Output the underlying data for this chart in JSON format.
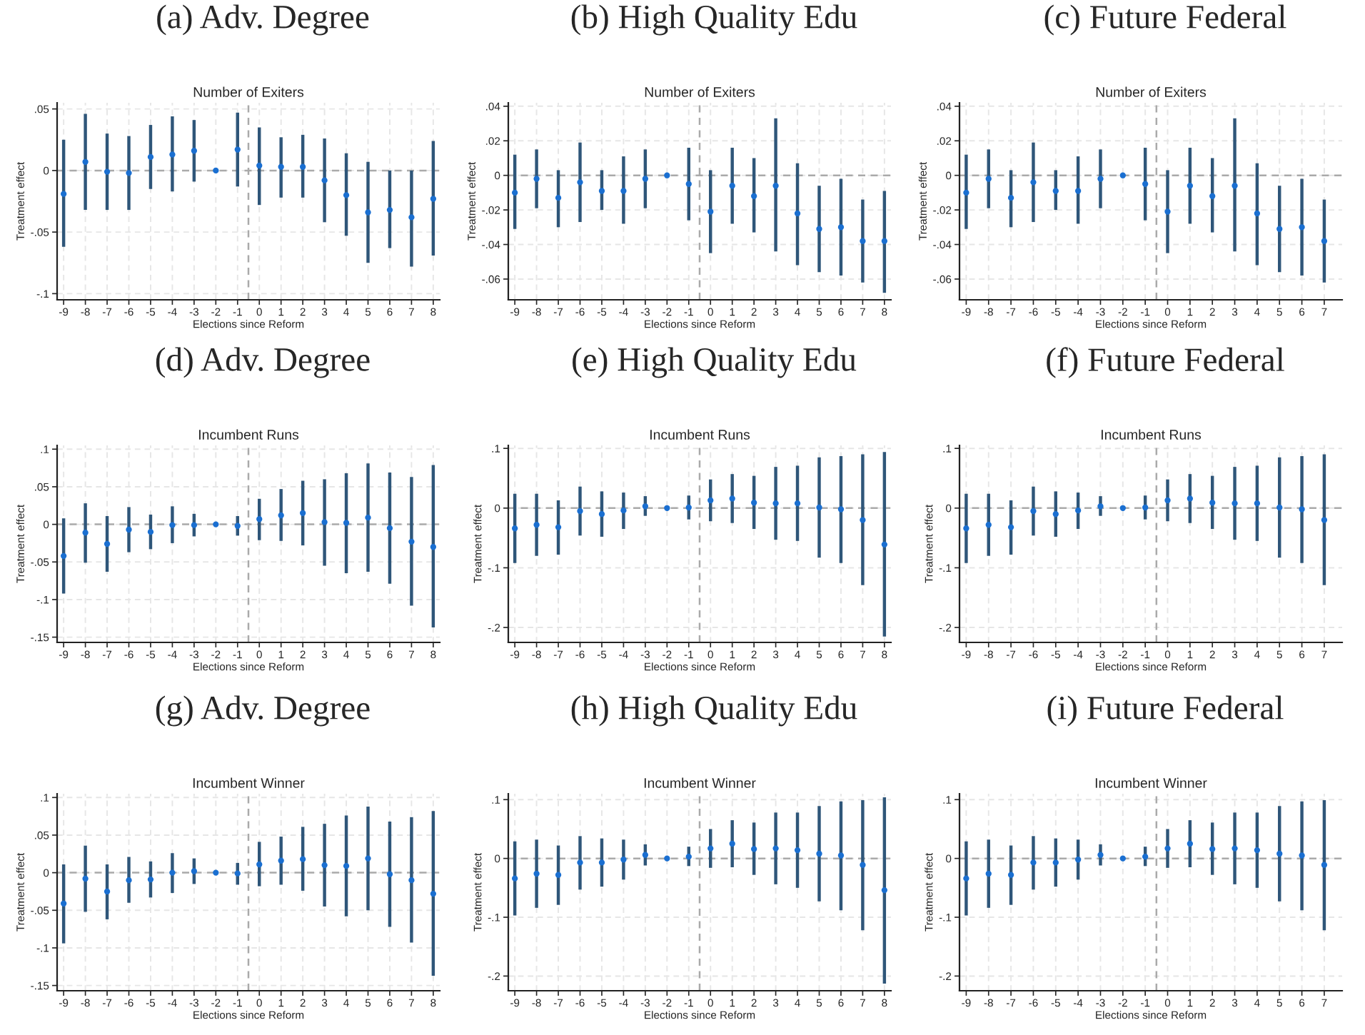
{
  "chart_data": [
    {
      "type": "scatter",
      "title": "(a) Adv. Degree",
      "subtitle": "Number of Exiters",
      "xlabel": "Elections since Reform",
      "ylabel": "Treatment effect",
      "marker": "circle",
      "grid": true,
      "x": [
        -9,
        -8,
        -7,
        -6,
        -5,
        -4,
        -3,
        -2,
        -1,
        0,
        1,
        2,
        3,
        4,
        5,
        6,
        7,
        8
      ],
      "series": [
        {
          "color": "#1a6fd1",
          "values": [
            -0.019,
            0.007,
            -0.001,
            -0.002,
            0.011,
            0.013,
            0.016,
            0,
            0.017,
            0.004,
            0.003,
            0.003,
            -0.008,
            -0.02,
            -0.034,
            -0.032,
            -0.038,
            -0.023
          ],
          "errors": [
            [
              -0.062,
              0.025
            ],
            [
              -0.032,
              0.046
            ],
            [
              -0.032,
              0.03
            ],
            [
              -0.032,
              0.028
            ],
            [
              -0.015,
              0.037
            ],
            [
              -0.017,
              0.044
            ],
            [
              -0.009,
              0.041
            ],
            null,
            [
              -0.013,
              0.047
            ],
            [
              -0.028,
              0.035
            ],
            [
              -0.022,
              0.027
            ],
            [
              -0.022,
              0.029
            ],
            [
              -0.042,
              0.026
            ],
            [
              -0.053,
              0.014
            ],
            [
              -0.075,
              0.007
            ],
            [
              -0.063,
              0
            ],
            [
              -0.078,
              0
            ],
            [
              -0.069,
              0.024
            ]
          ]
        }
      ],
      "xlim": [
        -9.3,
        8.3
      ],
      "xticks": [
        -9,
        -8,
        -7,
        -6,
        -5,
        -4,
        -3,
        -2,
        -1,
        0,
        1,
        2,
        3,
        4,
        5,
        6,
        7,
        8
      ],
      "ylim": [
        -0.105,
        0.055
      ],
      "yticks": [
        {
          "value": -0.1,
          "label": "-.1"
        },
        {
          "value": -0.05,
          "label": "-.05"
        },
        0,
        {
          "value": 0.05,
          "label": ".05"
        }
      ],
      "ref_lines": [
        {
          "axis": "y",
          "value": 0,
          "color": "#aaaaaa",
          "line_style": "dashed"
        },
        {
          "axis": "x",
          "value": -0.5,
          "color": "#aaaaaa",
          "line_style": "dashed"
        }
      ]
    },
    {
      "type": "scatter",
      "title": "(b) High Quality Edu",
      "subtitle": "Number of Exiters",
      "xlabel": "Elections since Reform",
      "ylabel": "Treatment effect",
      "marker": "circle",
      "grid": true,
      "x": [
        -9,
        -8,
        -7,
        -6,
        -5,
        -4,
        -3,
        -2,
        -1,
        0,
        1,
        2,
        3,
        4,
        5,
        6,
        7,
        8
      ],
      "series": [
        {
          "color": "#1a6fd1",
          "values": [
            -0.01,
            -0.002,
            -0.013,
            -0.004,
            -0.009,
            -0.009,
            -0.002,
            0,
            -0.005,
            -0.021,
            -0.006,
            -0.012,
            -0.006,
            -0.022,
            -0.031,
            -0.03,
            -0.038,
            -0.038
          ],
          "errors": [
            [
              -0.031,
              0.012
            ],
            [
              -0.019,
              0.015
            ],
            [
              -0.03,
              0.003
            ],
            [
              -0.027,
              0.019
            ],
            [
              -0.02,
              0.003
            ],
            [
              -0.028,
              0.011
            ],
            [
              -0.019,
              0.015
            ],
            null,
            [
              -0.026,
              0.016
            ],
            [
              -0.045,
              0.003
            ],
            [
              -0.028,
              0.016
            ],
            [
              -0.033,
              0.01
            ],
            [
              -0.044,
              0.033
            ],
            [
              -0.052,
              0.007
            ],
            [
              -0.056,
              -0.006
            ],
            [
              -0.058,
              -0.002
            ],
            [
              -0.062,
              -0.014
            ],
            [
              -0.068,
              -0.009
            ]
          ]
        }
      ],
      "xlim": [
        -9.3,
        8.3
      ],
      "xticks": [
        -9,
        -8,
        -7,
        -6,
        -5,
        -4,
        -3,
        -2,
        -1,
        0,
        1,
        2,
        3,
        4,
        5,
        6,
        7,
        8
      ],
      "ylim": [
        -0.072,
        0.042
      ],
      "yticks": [
        {
          "value": -0.06,
          "label": "-.06"
        },
        {
          "value": -0.04,
          "label": "-.04"
        },
        {
          "value": -0.02,
          "label": "-.02"
        },
        0,
        {
          "value": 0.02,
          "label": ".02"
        },
        {
          "value": 0.04,
          "label": ".04"
        }
      ],
      "ref_lines": [
        {
          "axis": "y",
          "value": 0,
          "color": "#aaaaaa",
          "line_style": "dashed"
        },
        {
          "axis": "x",
          "value": -0.5,
          "color": "#aaaaaa",
          "line_style": "dashed"
        }
      ]
    },
    {
      "type": "scatter",
      "title": "(c) Future Federal",
      "subtitle": "Number of Exiters",
      "xlabel": "Elections since Reform",
      "ylabel": "Treatment effect",
      "marker": "circle",
      "grid": true,
      "x": [
        -9,
        -8,
        -7,
        -6,
        -5,
        -4,
        -3,
        -2,
        -1,
        0,
        1,
        2,
        3,
        4,
        5,
        6,
        7
      ],
      "series": [
        {
          "color": "#1a6fd1",
          "values": [
            -0.01,
            -0.002,
            -0.013,
            -0.004,
            -0.009,
            -0.009,
            -0.002,
            0,
            -0.005,
            -0.021,
            -0.006,
            -0.012,
            -0.006,
            -0.022,
            -0.031,
            -0.03,
            -0.038
          ],
          "errors": [
            [
              -0.031,
              0.012
            ],
            [
              -0.019,
              0.015
            ],
            [
              -0.03,
              0.003
            ],
            [
              -0.027,
              0.019
            ],
            [
              -0.02,
              0.003
            ],
            [
              -0.028,
              0.011
            ],
            [
              -0.019,
              0.015
            ],
            null,
            [
              -0.026,
              0.016
            ],
            [
              -0.045,
              0.003
            ],
            [
              -0.028,
              0.016
            ],
            [
              -0.033,
              0.01
            ],
            [
              -0.044,
              0.033
            ],
            [
              -0.052,
              0.007
            ],
            [
              -0.056,
              -0.006
            ],
            [
              -0.058,
              -0.002
            ],
            [
              -0.062,
              -0.014
            ]
          ]
        }
      ],
      "xlim": [
        -9.3,
        7.8
      ],
      "xticks": [
        -9,
        -8,
        -7,
        -6,
        -5,
        -4,
        -3,
        -2,
        -1,
        0,
        1,
        2,
        3,
        4,
        5,
        6,
        7
      ],
      "ylim": [
        -0.072,
        0.042
      ],
      "yticks": [
        {
          "value": -0.06,
          "label": "-.06"
        },
        {
          "value": -0.04,
          "label": "-.04"
        },
        {
          "value": -0.02,
          "label": "-.02"
        },
        0,
        {
          "value": 0.02,
          "label": ".02"
        },
        {
          "value": 0.04,
          "label": ".04"
        }
      ],
      "ref_lines": [
        {
          "axis": "y",
          "value": 0,
          "color": "#aaaaaa",
          "line_style": "dashed"
        },
        {
          "axis": "x",
          "value": -0.5,
          "color": "#aaaaaa",
          "line_style": "dashed"
        }
      ]
    },
    {
      "type": "scatter",
      "title": "(d) Adv. Degree",
      "subtitle": "Incumbent Runs",
      "xlabel": "Elections since Reform",
      "ylabel": "Treatment effect",
      "marker": "circle",
      "grid": true,
      "x": [
        -9,
        -8,
        -7,
        -6,
        -5,
        -4,
        -3,
        -2,
        -1,
        0,
        1,
        2,
        3,
        4,
        5,
        6,
        7,
        8
      ],
      "series": [
        {
          "color": "#1a6fd1",
          "values": [
            -0.042,
            -0.011,
            -0.026,
            -0.007,
            -0.01,
            -0.001,
            -0.001,
            0,
            -0.002,
            0.007,
            0.012,
            0.015,
            0.003,
            0.002,
            0.009,
            -0.005,
            -0.023,
            -0.03
          ],
          "errors": [
            [
              -0.092,
              0.008
            ],
            [
              -0.051,
              0.028
            ],
            [
              -0.063,
              0.011
            ],
            [
              -0.037,
              0.023
            ],
            [
              -0.033,
              0.013
            ],
            [
              -0.025,
              0.024
            ],
            [
              -0.016,
              0.014
            ],
            null,
            [
              -0.015,
              0.011
            ],
            [
              -0.021,
              0.034
            ],
            [
              -0.022,
              0.047
            ],
            [
              -0.028,
              0.058
            ],
            [
              -0.055,
              0.06
            ],
            [
              -0.065,
              0.068
            ],
            [
              -0.063,
              0.081
            ],
            [
              -0.079,
              0.069
            ],
            [
              -0.108,
              0.063
            ],
            [
              -0.137,
              0.079
            ]
          ]
        }
      ],
      "xlim": [
        -9.3,
        8.3
      ],
      "xticks": [
        -9,
        -8,
        -7,
        -6,
        -5,
        -4,
        -3,
        -2,
        -1,
        0,
        1,
        2,
        3,
        4,
        5,
        6,
        7,
        8
      ],
      "ylim": [
        -0.157,
        0.105
      ],
      "yticks": [
        {
          "value": -0.15,
          "label": "-.15"
        },
        {
          "value": -0.1,
          "label": "-.1"
        },
        {
          "value": -0.05,
          "label": "-.05"
        },
        0,
        {
          "value": 0.05,
          "label": ".05"
        },
        {
          "value": 0.1,
          "label": ".1"
        }
      ],
      "ref_lines": [
        {
          "axis": "y",
          "value": 0,
          "color": "#aaaaaa",
          "line_style": "dashed"
        },
        {
          "axis": "x",
          "value": -0.5,
          "color": "#aaaaaa",
          "line_style": "dashed"
        }
      ]
    },
    {
      "type": "scatter",
      "title": "(e) High Quality Edu",
      "subtitle": "Incumbent Runs",
      "xlabel": "Elections since Reform",
      "ylabel": "Treatment effect",
      "marker": "circle",
      "grid": true,
      "x": [
        -9,
        -8,
        -7,
        -6,
        -5,
        -4,
        -3,
        -2,
        -1,
        0,
        1,
        2,
        3,
        4,
        5,
        6,
        7,
        8
      ],
      "series": [
        {
          "color": "#1a6fd1",
          "values": [
            -0.034,
            -0.028,
            -0.032,
            -0.005,
            -0.01,
            -0.004,
            0.003,
            0,
            0.001,
            0.013,
            0.016,
            0.009,
            0.008,
            0.008,
            0.001,
            -0.002,
            -0.02,
            -0.061
          ],
          "errors": [
            [
              -0.092,
              0.024
            ],
            [
              -0.08,
              0.024
            ],
            [
              -0.078,
              0.013
            ],
            [
              -0.046,
              0.036
            ],
            [
              -0.048,
              0.028
            ],
            [
              -0.035,
              0.026
            ],
            [
              -0.013,
              0.02
            ],
            null,
            [
              -0.019,
              0.021
            ],
            [
              -0.022,
              0.048
            ],
            [
              -0.025,
              0.057
            ],
            [
              -0.035,
              0.054
            ],
            [
              -0.053,
              0.069
            ],
            [
              -0.055,
              0.071
            ],
            [
              -0.083,
              0.085
            ],
            [
              -0.092,
              0.087
            ],
            [
              -0.129,
              0.09
            ],
            [
              -0.215,
              0.094
            ]
          ]
        }
      ],
      "xlim": [
        -9.3,
        8.3
      ],
      "xticks": [
        -9,
        -8,
        -7,
        -6,
        -5,
        -4,
        -3,
        -2,
        -1,
        0,
        1,
        2,
        3,
        4,
        5,
        6,
        7,
        8
      ],
      "ylim": [
        -0.225,
        0.105
      ],
      "yticks": [
        {
          "value": -0.2,
          "label": "-.2"
        },
        {
          "value": -0.1,
          "label": "-.1"
        },
        0,
        {
          "value": 0.1,
          "label": ".1"
        }
      ],
      "ref_lines": [
        {
          "axis": "y",
          "value": 0,
          "color": "#aaaaaa",
          "line_style": "dashed"
        },
        {
          "axis": "x",
          "value": -0.5,
          "color": "#aaaaaa",
          "line_style": "dashed"
        }
      ]
    },
    {
      "type": "scatter",
      "title": "(f) Future Federal",
      "subtitle": "Incumbent Runs",
      "xlabel": "Elections since Reform",
      "ylabel": "Treatment effect",
      "marker": "circle",
      "grid": true,
      "x": [
        -9,
        -8,
        -7,
        -6,
        -5,
        -4,
        -3,
        -2,
        -1,
        0,
        1,
        2,
        3,
        4,
        5,
        6,
        7
      ],
      "series": [
        {
          "color": "#1a6fd1",
          "values": [
            -0.034,
            -0.028,
            -0.032,
            -0.005,
            -0.01,
            -0.004,
            0.003,
            0,
            0.001,
            0.013,
            0.016,
            0.009,
            0.008,
            0.008,
            0.001,
            -0.002,
            -0.02
          ],
          "errors": [
            [
              -0.092,
              0.024
            ],
            [
              -0.08,
              0.024
            ],
            [
              -0.078,
              0.013
            ],
            [
              -0.046,
              0.036
            ],
            [
              -0.048,
              0.028
            ],
            [
              -0.035,
              0.026
            ],
            [
              -0.013,
              0.02
            ],
            null,
            [
              -0.019,
              0.021
            ],
            [
              -0.022,
              0.048
            ],
            [
              -0.025,
              0.057
            ],
            [
              -0.035,
              0.054
            ],
            [
              -0.053,
              0.069
            ],
            [
              -0.055,
              0.071
            ],
            [
              -0.083,
              0.085
            ],
            [
              -0.092,
              0.087
            ],
            [
              -0.129,
              0.09
            ]
          ]
        }
      ],
      "xlim": [
        -9.3,
        7.8
      ],
      "xticks": [
        -9,
        -8,
        -7,
        -6,
        -5,
        -4,
        -3,
        -2,
        -1,
        0,
        1,
        2,
        3,
        4,
        5,
        6,
        7
      ],
      "ylim": [
        -0.225,
        0.105
      ],
      "yticks": [
        {
          "value": -0.2,
          "label": "-.2"
        },
        {
          "value": -0.1,
          "label": "-.1"
        },
        0,
        {
          "value": 0.1,
          "label": ".1"
        }
      ],
      "ref_lines": [
        {
          "axis": "y",
          "value": 0,
          "color": "#aaaaaa",
          "line_style": "dashed"
        },
        {
          "axis": "x",
          "value": -0.5,
          "color": "#aaaaaa",
          "line_style": "dashed"
        }
      ]
    },
    {
      "type": "scatter",
      "title": "(g) Adv. Degree",
      "subtitle": "Incumbent Winner",
      "xlabel": "Elections since Reform",
      "ylabel": "Treatment effect",
      "marker": "circle",
      "grid": true,
      "x": [
        -9,
        -8,
        -7,
        -6,
        -5,
        -4,
        -3,
        -2,
        -1,
        0,
        1,
        2,
        3,
        4,
        5,
        6,
        7,
        8
      ],
      "series": [
        {
          "color": "#1a6fd1",
          "values": [
            -0.041,
            -0.008,
            -0.025,
            -0.01,
            -0.009,
            0.0,
            0.002,
            0,
            -0.001,
            0.011,
            0.016,
            0.018,
            0.01,
            0.009,
            0.019,
            -0.002,
            -0.01,
            -0.028
          ],
          "errors": [
            [
              -0.094,
              0.011
            ],
            [
              -0.052,
              0.036
            ],
            [
              -0.062,
              0.011
            ],
            [
              -0.04,
              0.021
            ],
            [
              -0.033,
              0.015
            ],
            [
              -0.027,
              0.026
            ],
            [
              -0.015,
              0.019
            ],
            null,
            [
              -0.016,
              0.013
            ],
            [
              -0.018,
              0.041
            ],
            [
              -0.016,
              0.048
            ],
            [
              -0.024,
              0.061
            ],
            [
              -0.045,
              0.065
            ],
            [
              -0.058,
              0.076
            ],
            [
              -0.05,
              0.088
            ],
            [
              -0.072,
              0.068
            ],
            [
              -0.093,
              0.074
            ],
            [
              -0.137,
              0.082
            ]
          ]
        }
      ],
      "xlim": [
        -9.3,
        8.3
      ],
      "xticks": [
        -9,
        -8,
        -7,
        -6,
        -5,
        -4,
        -3,
        -2,
        -1,
        0,
        1,
        2,
        3,
        4,
        5,
        6,
        7,
        8
      ],
      "ylim": [
        -0.157,
        0.105
      ],
      "yticks": [
        {
          "value": -0.15,
          "label": "-.15"
        },
        {
          "value": -0.1,
          "label": "-.1"
        },
        {
          "value": -0.05,
          "label": "-.05"
        },
        0,
        {
          "value": 0.05,
          "label": ".05"
        },
        {
          "value": 0.1,
          "label": ".1"
        }
      ],
      "ref_lines": [
        {
          "axis": "y",
          "value": 0,
          "color": "#aaaaaa",
          "line_style": "dashed"
        },
        {
          "axis": "x",
          "value": -0.5,
          "color": "#aaaaaa",
          "line_style": "dashed"
        }
      ]
    },
    {
      "type": "scatter",
      "title": "(h) High Quality Edu",
      "subtitle": "Incumbent Winner",
      "xlabel": "Elections since Reform",
      "ylabel": "Treatment effect",
      "marker": "circle",
      "grid": true,
      "x": [
        -9,
        -8,
        -7,
        -6,
        -5,
        -4,
        -3,
        -2,
        -1,
        0,
        1,
        2,
        3,
        4,
        5,
        6,
        7,
        8
      ],
      "series": [
        {
          "color": "#1a6fd1",
          "values": [
            -0.034,
            -0.026,
            -0.028,
            -0.007,
            -0.007,
            -0.002,
            0.006,
            0,
            0.003,
            0.017,
            0.025,
            0.016,
            0.017,
            0.014,
            0.008,
            0.005,
            -0.011,
            -0.054
          ],
          "errors": [
            [
              -0.097,
              0.029
            ],
            [
              -0.084,
              0.032
            ],
            [
              -0.079,
              0.022
            ],
            [
              -0.053,
              0.038
            ],
            [
              -0.048,
              0.034
            ],
            [
              -0.036,
              0.032
            ],
            [
              -0.012,
              0.024
            ],
            null,
            [
              -0.013,
              0.02
            ],
            [
              -0.016,
              0.05
            ],
            [
              -0.015,
              0.065
            ],
            [
              -0.028,
              0.061
            ],
            [
              -0.044,
              0.078
            ],
            [
              -0.05,
              0.078
            ],
            [
              -0.073,
              0.089
            ],
            [
              -0.088,
              0.097
            ],
            [
              -0.122,
              0.099
            ],
            [
              -0.213,
              0.104
            ]
          ]
        }
      ],
      "xlim": [
        -9.3,
        8.3
      ],
      "xticks": [
        -9,
        -8,
        -7,
        -6,
        -5,
        -4,
        -3,
        -2,
        -1,
        0,
        1,
        2,
        3,
        4,
        5,
        6,
        7,
        8
      ],
      "ylim": [
        -0.225,
        0.11
      ],
      "yticks": [
        {
          "value": -0.2,
          "label": "-.2"
        },
        {
          "value": -0.1,
          "label": "-.1"
        },
        0,
        {
          "value": 0.1,
          "label": ".1"
        }
      ],
      "ref_lines": [
        {
          "axis": "y",
          "value": 0,
          "color": "#aaaaaa",
          "line_style": "dashed"
        },
        {
          "axis": "x",
          "value": -0.5,
          "color": "#aaaaaa",
          "line_style": "dashed"
        }
      ]
    },
    {
      "type": "scatter",
      "title": "(i) Future Federal",
      "subtitle": "Incumbent Winner",
      "xlabel": "Elections since Reform",
      "ylabel": "Treatment effect",
      "marker": "circle",
      "grid": true,
      "x": [
        -9,
        -8,
        -7,
        -6,
        -5,
        -4,
        -3,
        -2,
        -1,
        0,
        1,
        2,
        3,
        4,
        5,
        6,
        7
      ],
      "series": [
        {
          "color": "#1a6fd1",
          "values": [
            -0.034,
            -0.026,
            -0.028,
            -0.007,
            -0.007,
            -0.002,
            0.006,
            0,
            0.003,
            0.017,
            0.025,
            0.016,
            0.017,
            0.014,
            0.008,
            0.005,
            -0.011
          ],
          "errors": [
            [
              -0.097,
              0.029
            ],
            [
              -0.084,
              0.032
            ],
            [
              -0.079,
              0.022
            ],
            [
              -0.053,
              0.038
            ],
            [
              -0.048,
              0.034
            ],
            [
              -0.036,
              0.032
            ],
            [
              -0.012,
              0.024
            ],
            null,
            [
              -0.013,
              0.02
            ],
            [
              -0.016,
              0.05
            ],
            [
              -0.015,
              0.065
            ],
            [
              -0.028,
              0.061
            ],
            [
              -0.044,
              0.078
            ],
            [
              -0.05,
              0.078
            ],
            [
              -0.073,
              0.089
            ],
            [
              -0.088,
              0.097
            ],
            [
              -0.122,
              0.099
            ]
          ]
        }
      ],
      "xlim": [
        -9.3,
        7.8
      ],
      "xticks": [
        -9,
        -8,
        -7,
        -6,
        -5,
        -4,
        -3,
        -2,
        -1,
        0,
        1,
        2,
        3,
        4,
        5,
        6,
        7
      ],
      "ylim": [
        -0.225,
        0.11
      ],
      "yticks": [
        {
          "value": -0.2,
          "label": "-.2"
        },
        {
          "value": -0.1,
          "label": "-.1"
        },
        0,
        {
          "value": 0.1,
          "label": ".1"
        }
      ],
      "ref_lines": [
        {
          "axis": "y",
          "value": 0,
          "color": "#aaaaaa",
          "line_style": "dashed"
        },
        {
          "axis": "x",
          "value": -0.5,
          "color": "#aaaaaa",
          "line_style": "dashed"
        }
      ]
    }
  ]
}
